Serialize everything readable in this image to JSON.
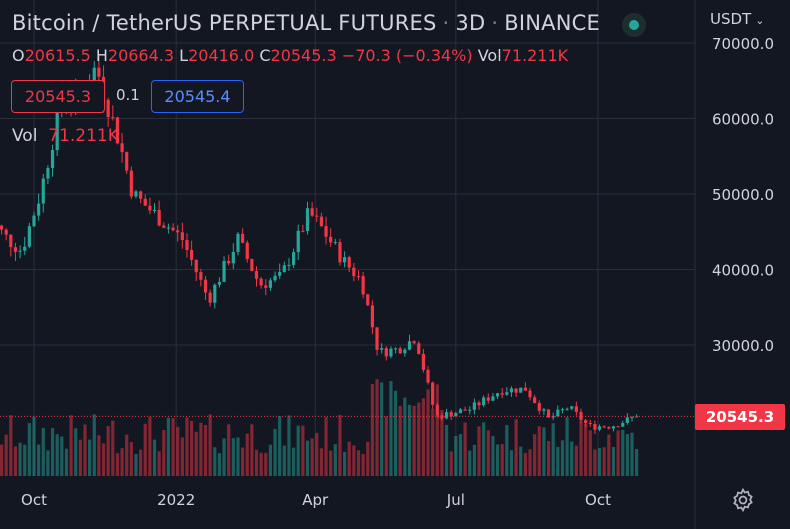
{
  "header": {
    "symbol": "Bitcoin / TetherUS PERPETUAL FUTURES",
    "interval": "3D",
    "exchange": "BINANCE",
    "currency": "USDT"
  },
  "ohlc": {
    "o_label": "O",
    "o": "20615.5",
    "h_label": "H",
    "h": "20664.3",
    "l_label": "L",
    "l": "20416.0",
    "c_label": "C",
    "c": "20545.3",
    "change": "−70.3 (−0.34%)",
    "vol_label": "Vol",
    "vol": "71.211K"
  },
  "trade": {
    "sell_price": "20545.3",
    "spread": "0.1",
    "buy_price": "20545.4"
  },
  "volume_legend": {
    "label": "Vol",
    "value": "71.211K"
  },
  "last_price_label": "20545.3",
  "colors": {
    "up": "#26a69a",
    "down": "#f23645",
    "background": "#131722",
    "grid": "#2a2e39",
    "text": "#d1d4dc"
  },
  "icons": {
    "status": "status-dot-icon",
    "currency_menu": "chevron-down-icon",
    "settings": "gear-icon"
  },
  "chart_data": {
    "type": "candlestick",
    "price_axis": {
      "ticks": [
        "70000.0",
        "60000.0",
        "50000.0",
        "40000.0",
        "30000.0"
      ],
      "tick_values": [
        70000,
        60000,
        50000,
        40000,
        30000
      ],
      "ylim": [
        14000,
        74000
      ]
    },
    "time_axis": {
      "ticks": [
        "Oct",
        "2022",
        "Apr",
        "Jul",
        "Oct"
      ],
      "tick_dates": [
        "2021-10-01",
        "2022-01-01",
        "2022-04-01",
        "2022-07-01",
        "2022-10-01"
      ]
    },
    "grid": true,
    "last_price": 20545.3,
    "price_anchors": [
      [
        "2021-09-01",
        47000
      ],
      [
        "2021-09-14",
        44000
      ],
      [
        "2021-09-23",
        42500
      ],
      [
        "2021-10-05",
        50000
      ],
      [
        "2021-10-14",
        58000
      ],
      [
        "2021-10-20",
        63000
      ],
      [
        "2021-11-01",
        62000
      ],
      [
        "2021-11-10",
        67000
      ],
      [
        "2021-11-25",
        57000
      ],
      [
        "2021-12-04",
        50000
      ],
      [
        "2021-12-20",
        47000
      ],
      [
        "2022-01-05",
        44000
      ],
      [
        "2022-01-22",
        36000
      ],
      [
        "2022-02-10",
        44000
      ],
      [
        "2022-02-24",
        38000
      ],
      [
        "2022-03-10",
        39000
      ],
      [
        "2022-03-28",
        47500
      ],
      [
        "2022-04-05",
        45500
      ],
      [
        "2022-04-20",
        41000
      ],
      [
        "2022-05-01",
        38500
      ],
      [
        "2022-05-12",
        29000
      ],
      [
        "2022-05-25",
        29500
      ],
      [
        "2022-06-05",
        31000
      ],
      [
        "2022-06-18",
        20500
      ],
      [
        "2022-07-10",
        21500
      ],
      [
        "2022-07-30",
        24000
      ],
      [
        "2022-08-15",
        24200
      ],
      [
        "2022-08-30",
        20200
      ],
      [
        "2022-09-12",
        21800
      ],
      [
        "2022-09-25",
        19200
      ],
      [
        "2022-10-10",
        19300
      ],
      [
        "2022-10-26",
        20545
      ]
    ]
  }
}
